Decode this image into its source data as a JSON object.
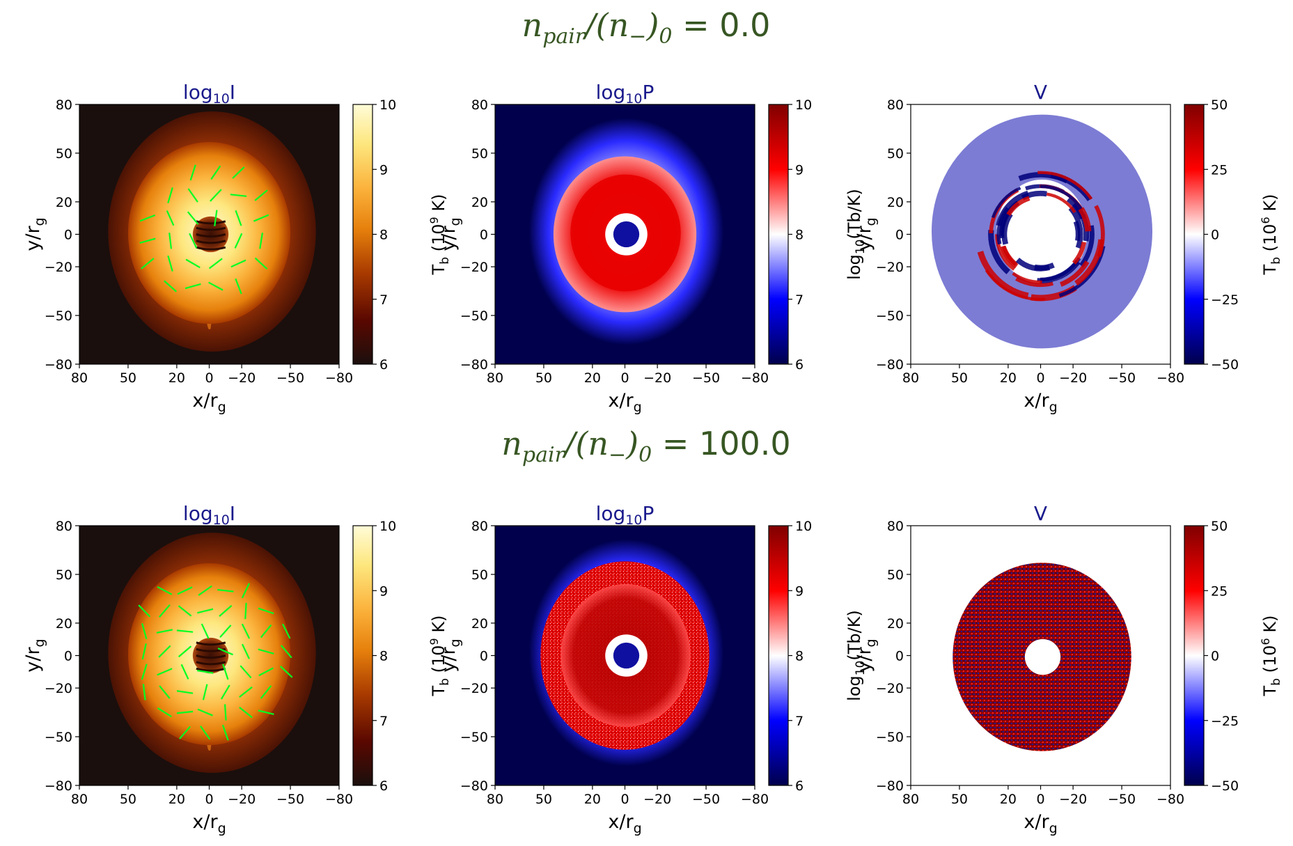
{
  "colors": {
    "row_title": "#375623",
    "panel_title": "#1a1a8c",
    "afmhot_stops": [
      "#1a0f0d",
      "#5a0800",
      "#a83a00",
      "#e6800c",
      "#fbb33d",
      "#fde77f",
      "#fffbd8"
    ],
    "seismic_stops": [
      "#00004c",
      "#0000ff",
      "#ffffff",
      "#ff0000",
      "#800000"
    ],
    "evpa_ticks": "#00ff22"
  },
  "rows": [
    {
      "title_prefix": "n",
      "title_sub1": "pair",
      "title_mid": "/(n",
      "title_sub2": "−",
      "title_end": ")",
      "title_sub3": "0",
      "title_value": " = 0.0"
    },
    {
      "title_prefix": "n",
      "title_sub1": "pair",
      "title_mid": "/(n",
      "title_sub2": "−",
      "title_end": ")",
      "title_sub3": "0",
      "title_value": " = 100.0"
    }
  ],
  "chart_data": [
    {
      "type": "heatmap",
      "row": 0,
      "title_base": "log",
      "title_sub": "10",
      "title_var": "I",
      "xlabel_main": "x/r",
      "xlabel_sub": "g",
      "ylabel_main": "y/r",
      "ylabel_sub": "g",
      "xlim": [
        80,
        -80
      ],
      "ylim": [
        -80,
        80
      ],
      "xticks": [
        "80",
        "50",
        "20",
        "0",
        "−20",
        "−50",
        "−80"
      ],
      "xtick_values": [
        80,
        50,
        20,
        0,
        -20,
        -50,
        -80
      ],
      "yticks": [
        "80",
        "50",
        "20",
        "0",
        "−20",
        "−50",
        "−80"
      ],
      "ytick_values": [
        80,
        50,
        20,
        0,
        -20,
        -50,
        -80
      ],
      "colormap": "afmhot",
      "colorbar_range": [
        6,
        10
      ],
      "colorbar_ticks": [
        "6",
        "7",
        "8",
        "9",
        "10"
      ],
      "colorbar_tick_values": [
        6,
        7,
        8,
        9,
        10
      ],
      "colorbar_label_main": "T",
      "colorbar_label_sub": "b",
      "colorbar_label_rest": " (10",
      "colorbar_label_sup": "9",
      "colorbar_label_end": " K)",
      "evpa_ticks": true,
      "evpa_spacing": 14.0,
      "evpa_radius_max": 44.0,
      "evpa_radius_min": 8.0,
      "evpa_seed": 3
    },
    {
      "type": "heatmap",
      "row": 0,
      "title_base": "log",
      "title_sub": "10",
      "title_var": "P",
      "xlabel_main": "x/r",
      "xlabel_sub": "g",
      "ylabel_main": "y/r",
      "ylabel_sub": "g",
      "xlim": [
        80,
        -80
      ],
      "ylim": [
        -80,
        80
      ],
      "xticks": [
        "80",
        "50",
        "20",
        "0",
        "−20",
        "−50",
        "−80"
      ],
      "xtick_values": [
        80,
        50,
        20,
        0,
        -20,
        -50,
        -80
      ],
      "yticks": [
        "80",
        "50",
        "20",
        "0",
        "−20",
        "−50",
        "−80"
      ],
      "ytick_values": [
        80,
        50,
        20,
        0,
        -20,
        -50,
        -80
      ],
      "colormap": "seismic",
      "colorbar_range": [
        6,
        10
      ],
      "colorbar_ticks": [
        "6",
        "7",
        "8",
        "9",
        "10"
      ],
      "colorbar_tick_values": [
        6,
        7,
        8,
        9,
        10
      ],
      "colorbar_label_main": "log",
      "colorbar_label_sub": "10",
      "colorbar_label_rest": "(Tb/K)",
      "colorbar_label_sup": "",
      "colorbar_label_end": "",
      "evpa_ticks": false
    },
    {
      "type": "heatmap",
      "row": 0,
      "title_base": "",
      "title_sub": "",
      "title_var": "V",
      "xlabel_main": "x/r",
      "xlabel_sub": "g",
      "ylabel_main": "y/r",
      "ylabel_sub": "g",
      "xlim": [
        80,
        -80
      ],
      "ylim": [
        -80,
        80
      ],
      "xticks": [
        "80",
        "50",
        "20",
        "0",
        "−20",
        "−50",
        "−80"
      ],
      "xtick_values": [
        80,
        50,
        20,
        0,
        -20,
        -50,
        -80
      ],
      "yticks": [
        "80",
        "50",
        "20",
        "0",
        "−20",
        "−50",
        "−80"
      ],
      "ytick_values": [
        80,
        50,
        20,
        0,
        -20,
        -50,
        -80
      ],
      "colormap": "seismic",
      "colorbar_range": [
        -50,
        50
      ],
      "colorbar_ticks": [
        "−50",
        "−25",
        "0",
        "25",
        "50"
      ],
      "colorbar_tick_values": [
        -50,
        -25,
        0,
        25,
        50
      ],
      "colorbar_label_main": "T",
      "colorbar_label_sub": "b",
      "colorbar_label_rest": " (10",
      "colorbar_label_sup": "6",
      "colorbar_label_end": " K)",
      "evpa_ticks": false
    },
    {
      "type": "heatmap",
      "row": 1,
      "title_base": "log",
      "title_sub": "10",
      "title_var": "I",
      "xlabel_main": "x/r",
      "xlabel_sub": "g",
      "ylabel_main": "y/r",
      "ylabel_sub": "g",
      "xlim": [
        80,
        -80
      ],
      "ylim": [
        -80,
        80
      ],
      "xticks": [
        "80",
        "50",
        "20",
        "0",
        "−20",
        "−50",
        "−80"
      ],
      "xtick_values": [
        80,
        50,
        20,
        0,
        -20,
        -50,
        -80
      ],
      "yticks": [
        "80",
        "50",
        "20",
        "0",
        "−20",
        "−50",
        "−80"
      ],
      "ytick_values": [
        80,
        50,
        20,
        0,
        -20,
        -50,
        -80
      ],
      "colormap": "afmhot",
      "colorbar_range": [
        6,
        10
      ],
      "colorbar_ticks": [
        "6",
        "7",
        "8",
        "9",
        "10"
      ],
      "colorbar_tick_values": [
        6,
        7,
        8,
        9,
        10
      ],
      "colorbar_label_main": "T",
      "colorbar_label_sub": "b",
      "colorbar_label_rest": " (10",
      "colorbar_label_sup": "9",
      "colorbar_label_end": " K)",
      "evpa_ticks": true,
      "evpa_spacing": 12.5,
      "evpa_radius_max": 50.0,
      "evpa_radius_min": 9.0,
      "evpa_seed": 11
    },
    {
      "type": "heatmap",
      "row": 1,
      "title_base": "log",
      "title_sub": "10",
      "title_var": "P",
      "xlabel_main": "x/r",
      "xlabel_sub": "g",
      "ylabel_main": "y/r",
      "ylabel_sub": "g",
      "xlim": [
        80,
        -80
      ],
      "ylim": [
        -80,
        80
      ],
      "xticks": [
        "80",
        "50",
        "20",
        "0",
        "−20",
        "−50",
        "−80"
      ],
      "xtick_values": [
        80,
        50,
        20,
        0,
        -20,
        -50,
        -80
      ],
      "yticks": [
        "80",
        "50",
        "20",
        "0",
        "−20",
        "−50",
        "−80"
      ],
      "ytick_values": [
        80,
        50,
        20,
        0,
        -20,
        -50,
        -80
      ],
      "colormap": "seismic",
      "colorbar_range": [
        6,
        10
      ],
      "colorbar_ticks": [
        "6",
        "7",
        "8",
        "9",
        "10"
      ],
      "colorbar_tick_values": [
        6,
        7,
        8,
        9,
        10
      ],
      "colorbar_label_main": "log",
      "colorbar_label_sub": "10",
      "colorbar_label_rest": "(Tb/K)",
      "colorbar_label_sup": "",
      "colorbar_label_end": "",
      "evpa_ticks": false
    },
    {
      "type": "heatmap",
      "row": 1,
      "title_base": "",
      "title_sub": "",
      "title_var": "V",
      "xlabel_main": "x/r",
      "xlabel_sub": "g",
      "ylabel_main": "y/r",
      "ylabel_sub": "g",
      "xlim": [
        80,
        -80
      ],
      "ylim": [
        -80,
        80
      ],
      "xticks": [
        "80",
        "50",
        "20",
        "0",
        "−20",
        "−50",
        "−80"
      ],
      "xtick_values": [
        80,
        50,
        20,
        0,
        -20,
        -50,
        -80
      ],
      "yticks": [
        "80",
        "50",
        "20",
        "0",
        "−20",
        "−50",
        "−80"
      ],
      "ytick_values": [
        80,
        50,
        20,
        0,
        -20,
        -50,
        -80
      ],
      "colormap": "seismic",
      "colorbar_range": [
        -50,
        50
      ],
      "colorbar_ticks": [
        "−50",
        "−25",
        "0",
        "25",
        "50"
      ],
      "colorbar_tick_values": [
        -50,
        -25,
        0,
        25,
        50
      ],
      "colorbar_label_main": "T",
      "colorbar_label_sub": "b",
      "colorbar_label_rest": " (10",
      "colorbar_label_sup": "6",
      "colorbar_label_end": " K)",
      "evpa_ticks": false
    }
  ]
}
